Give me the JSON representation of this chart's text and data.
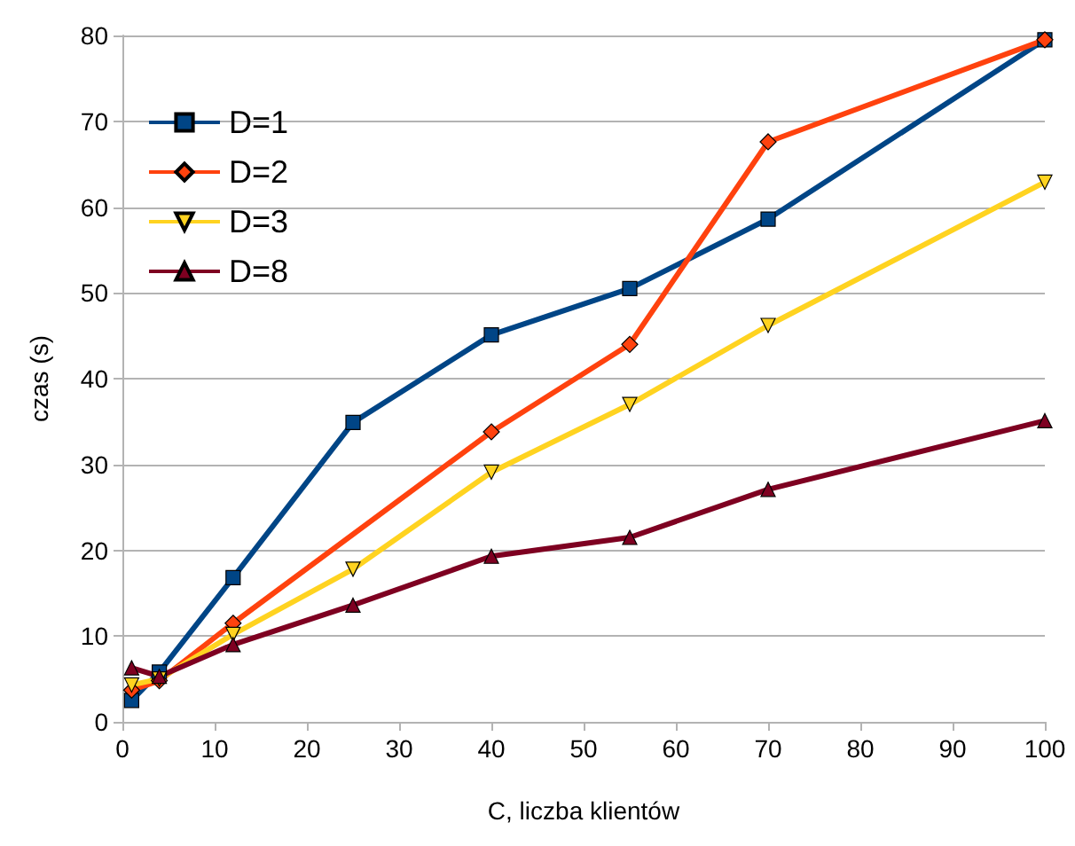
{
  "chart_data": {
    "type": "line",
    "xlabel": "C, liczba klientów",
    "ylabel": "czas (s)",
    "x": [
      1,
      4,
      12,
      25,
      40,
      55,
      70,
      100
    ],
    "xlim": [
      0,
      100
    ],
    "xticks": [
      0,
      10,
      20,
      30,
      40,
      50,
      60,
      70,
      80,
      90,
      100
    ],
    "ylim": [
      0,
      80
    ],
    "yticks": [
      0,
      10,
      20,
      30,
      40,
      50,
      60,
      70,
      80
    ],
    "grid": "y",
    "legend": "top left",
    "series": [
      {
        "name": "D=1",
        "color": "#004586",
        "marker": "square",
        "values": [
          2.5,
          5.8,
          16.8,
          34.9,
          45.1,
          50.5,
          58.6,
          79.5
        ]
      },
      {
        "name": "D=2",
        "color": "#ff420e",
        "marker": "diamond",
        "x": [
          1,
          4,
          12,
          40,
          55,
          70,
          100
        ],
        "values": [
          3.7,
          4.8,
          11.5,
          33.8,
          44.0,
          67.6,
          79.5
        ]
      },
      {
        "name": "D=3",
        "color": "#ffd320",
        "marker": "triangle-down",
        "values": [
          4.3,
          5.0,
          10.2,
          17.8,
          29.1,
          37.0,
          46.2,
          62.9
        ]
      },
      {
        "name": "D=8",
        "color": "#7e0021",
        "marker": "triangle",
        "values": [
          6.3,
          5.3,
          9.0,
          13.6,
          19.3,
          21.5,
          27.1,
          35.1
        ]
      }
    ]
  }
}
